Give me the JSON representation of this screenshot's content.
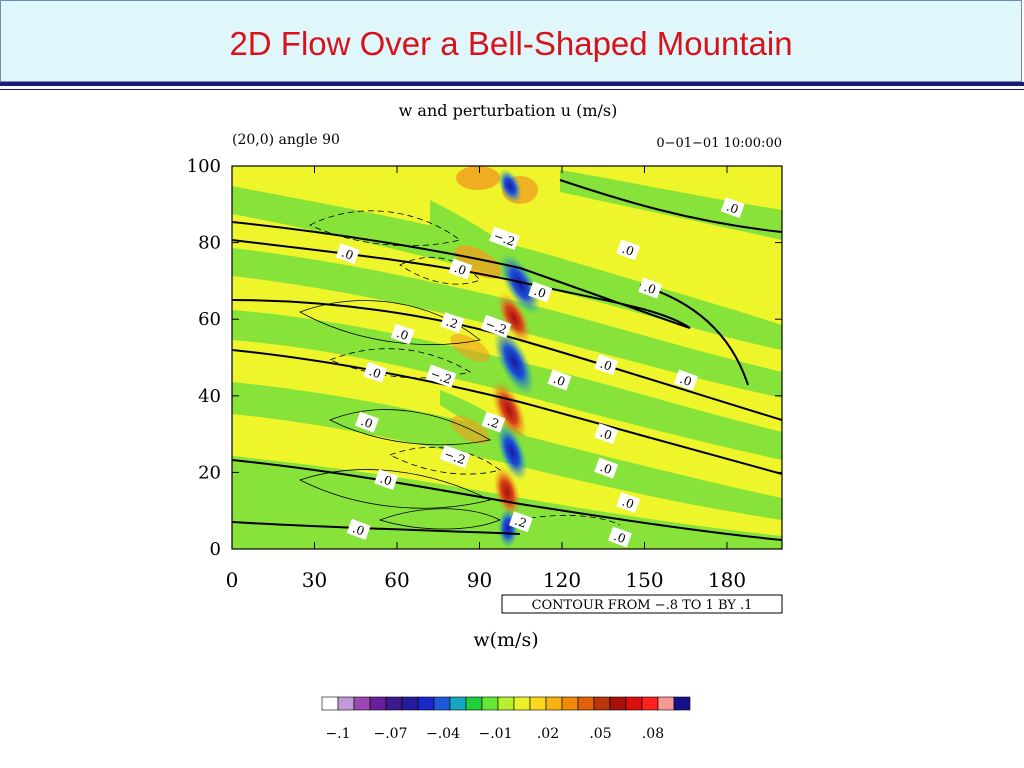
{
  "slide": {
    "title": "2D Flow Over a Bell-Shaped Mountain"
  },
  "chart_data": {
    "type": "heatmap",
    "title": "w and perturbation u (m/s)",
    "subtitle_left": "(20,0) angle 90",
    "subtitle_right": "0−01−01 10:00:00",
    "xlabel": "w(m/s)",
    "ylabel": "",
    "xlim": [
      0,
      200
    ],
    "ylim": [
      0,
      100
    ],
    "x_ticks": [
      "0",
      "30",
      "60",
      "90",
      "120",
      "150",
      "180"
    ],
    "x_tick_values": [
      0,
      30,
      60,
      90,
      120,
      150,
      180
    ],
    "y_ticks": [
      "0",
      "20",
      "40",
      "60",
      "80",
      "100"
    ],
    "y_tick_values": [
      0,
      20,
      40,
      60,
      80,
      100
    ],
    "contour_note": "CONTOUR FROM −.8 TO 1 BY .1",
    "contour_labels": [
      {
        "text": ".0",
        "x": 182,
        "y": 89
      },
      {
        "text": ".0",
        "x": 144,
        "y": 78
      },
      {
        "text": ".0",
        "x": 152,
        "y": 68
      },
      {
        "text": ".0",
        "x": 42,
        "y": 77
      },
      {
        "text": ".0",
        "x": 83,
        "y": 73
      },
      {
        "text": "−.2",
        "x": 99,
        "y": 81
      },
      {
        "text": ".0",
        "x": 112,
        "y": 67
      },
      {
        "text": ".2",
        "x": 80,
        "y": 59
      },
      {
        "text": "−.2",
        "x": 96,
        "y": 58
      },
      {
        "text": ".0",
        "x": 62,
        "y": 56
      },
      {
        "text": ".0",
        "x": 136,
        "y": 48
      },
      {
        "text": ".0",
        "x": 165,
        "y": 44
      },
      {
        "text": ".0",
        "x": 52,
        "y": 46
      },
      {
        "text": "−.2",
        "x": 76,
        "y": 45
      },
      {
        "text": ".0",
        "x": 119,
        "y": 44
      },
      {
        "text": ".0",
        "x": 49,
        "y": 33
      },
      {
        "text": ".2",
        "x": 95,
        "y": 33
      },
      {
        "text": ".0",
        "x": 136,
        "y": 30
      },
      {
        "text": "−.2",
        "x": 81,
        "y": 24
      },
      {
        "text": ".0",
        "x": 136,
        "y": 21
      },
      {
        "text": ".0",
        "x": 56,
        "y": 18
      },
      {
        "text": ".0",
        "x": 144,
        "y": 12
      },
      {
        "text": ".0",
        "x": 46,
        "y": 5
      },
      {
        "text": ".2",
        "x": 105,
        "y": 7
      },
      {
        "text": ".0",
        "x": 141,
        "y": 3
      }
    ],
    "colorbar": {
      "colors": [
        "#ffffff",
        "#c09ad6",
        "#9a48b2",
        "#6a1f9a",
        "#3c1a8e",
        "#241c9c",
        "#1a28c8",
        "#1e5ad8",
        "#15a8c0",
        "#1fd03a",
        "#66e636",
        "#b4f02c",
        "#eaf02a",
        "#fad81e",
        "#f7b214",
        "#ef8a0a",
        "#e0600c",
        "#b83608",
        "#a81010",
        "#d81010",
        "#ff2020",
        "#f79a96",
        "#16108a"
      ],
      "tick_labels": [
        "−.1",
        "−.07",
        "−.04",
        "−.01",
        ".02",
        ".05",
        ".08"
      ]
    }
  }
}
